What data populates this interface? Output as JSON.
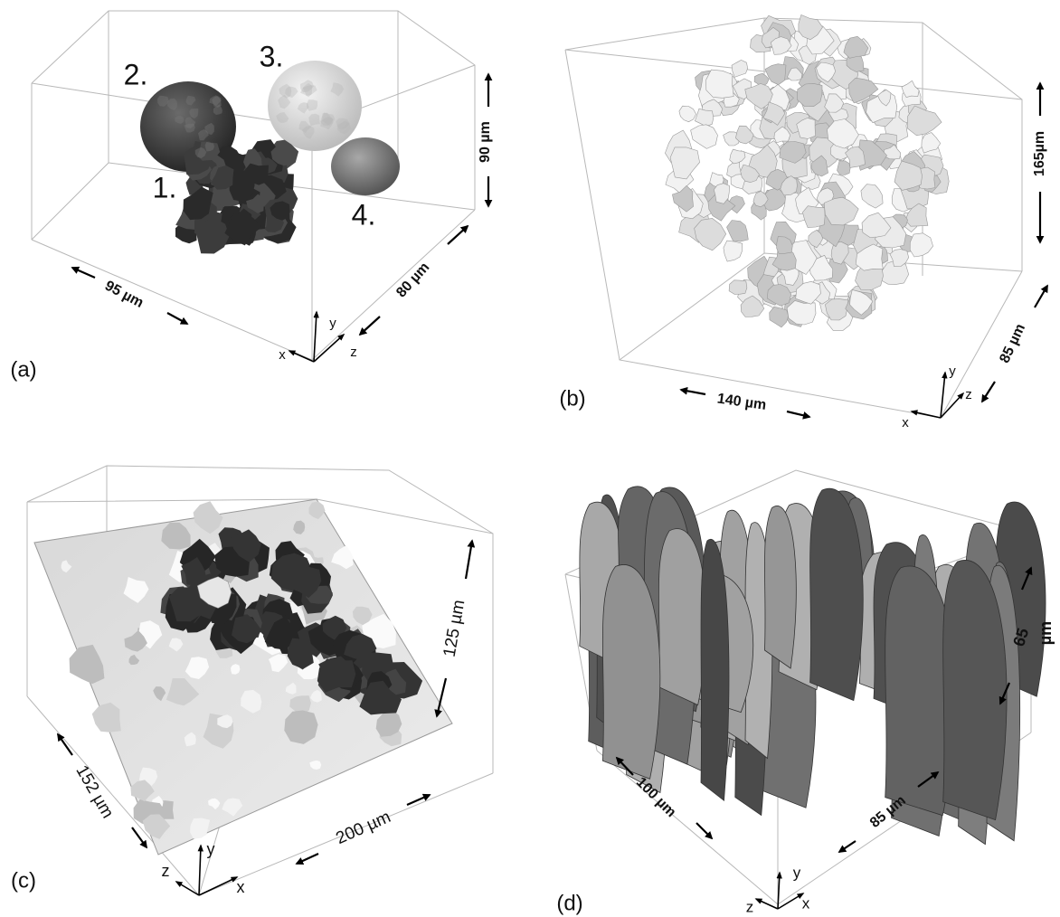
{
  "panels": [
    {
      "label": "(a)",
      "objects": [
        "1.",
        "2.",
        "3.",
        "4."
      ],
      "dimensions": [
        "95 µm",
        "80 µm",
        "90 µm"
      ],
      "axes": [
        "x",
        "y",
        "z"
      ]
    },
    {
      "label": "(b)",
      "dimensions": [
        "140 µm",
        "85 µm",
        "165µm"
      ],
      "axes": [
        "x",
        "y",
        "z"
      ]
    },
    {
      "label": "(c)",
      "dimensions": [
        "152 µm",
        "200 µm",
        "125 µm"
      ],
      "axes": [
        "x",
        "y",
        "z"
      ]
    },
    {
      "label": "(d)",
      "dimensions": [
        "100 µm",
        "85 µm",
        "65",
        "µm"
      ],
      "axes": [
        "x",
        "y",
        "z"
      ]
    }
  ]
}
